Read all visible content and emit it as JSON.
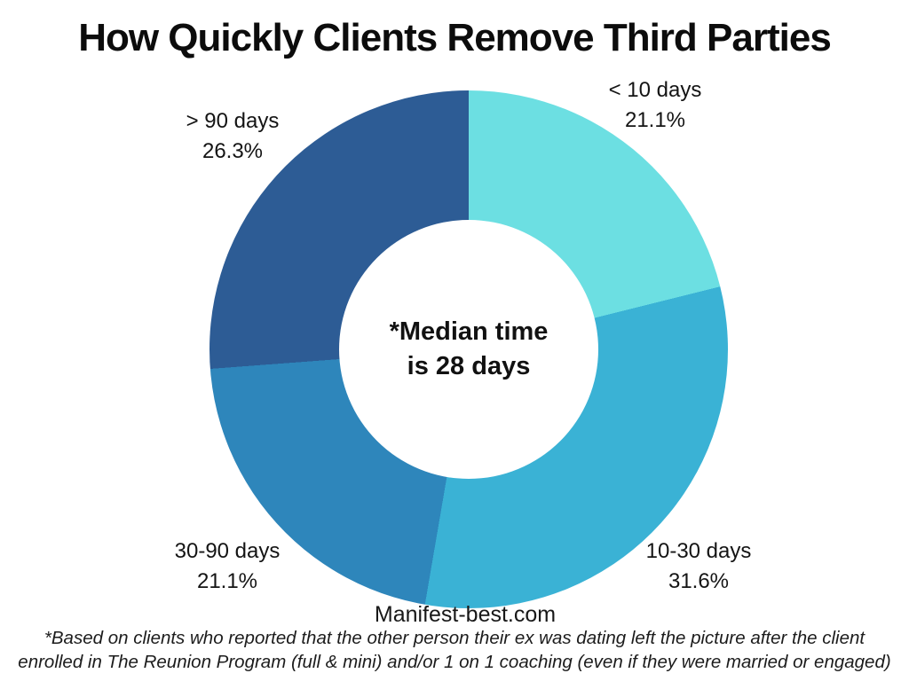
{
  "title": "How Quickly Clients Remove Third Parties",
  "chart_data": {
    "type": "pie",
    "subtype": "donut",
    "title": "How Quickly Clients Remove Third Parties",
    "start_angle_deg": 0,
    "direction": "clockwise",
    "hole_radius_ratio": 0.5,
    "legend_position": "around-slices",
    "segments": [
      {
        "label": "< 10 days",
        "value_pct": 21.1,
        "pct_text": "21.1%",
        "color": "#6CDFE2",
        "label_position": "top-right"
      },
      {
        "label": "10-30 days",
        "value_pct": 31.6,
        "pct_text": "31.6%",
        "color": "#3AB2D5",
        "label_position": "bottom-right"
      },
      {
        "label": "30-90 days",
        "value_pct": 21.1,
        "pct_text": "21.1%",
        "color": "#2E86BB",
        "label_position": "bottom-left"
      },
      {
        "label": "> 90 days",
        "value_pct": 26.3,
        "pct_text": "26.3%",
        "color": "#2D5C95",
        "label_position": "top-left"
      }
    ],
    "center_note": "*Median time is 28 days",
    "center_note_lines": [
      "*Median time",
      "is 28 days"
    ]
  },
  "branding": {
    "website": "Manifest-best.com"
  },
  "footnote": {
    "full_text": "*Based on clients who reported that the other person their ex was dating left the picture after the client enrolled in The Reunion Program (full & mini) and/or 1 on 1 coaching (even if they were married or engaged)",
    "lines": [
      "*Based on clients who reported that the other person their ex was dating left the picture after the client",
      "enrolled in The Reunion Program (full & mini) and/or 1 on 1 coaching (even if they were married or engaged)"
    ]
  }
}
